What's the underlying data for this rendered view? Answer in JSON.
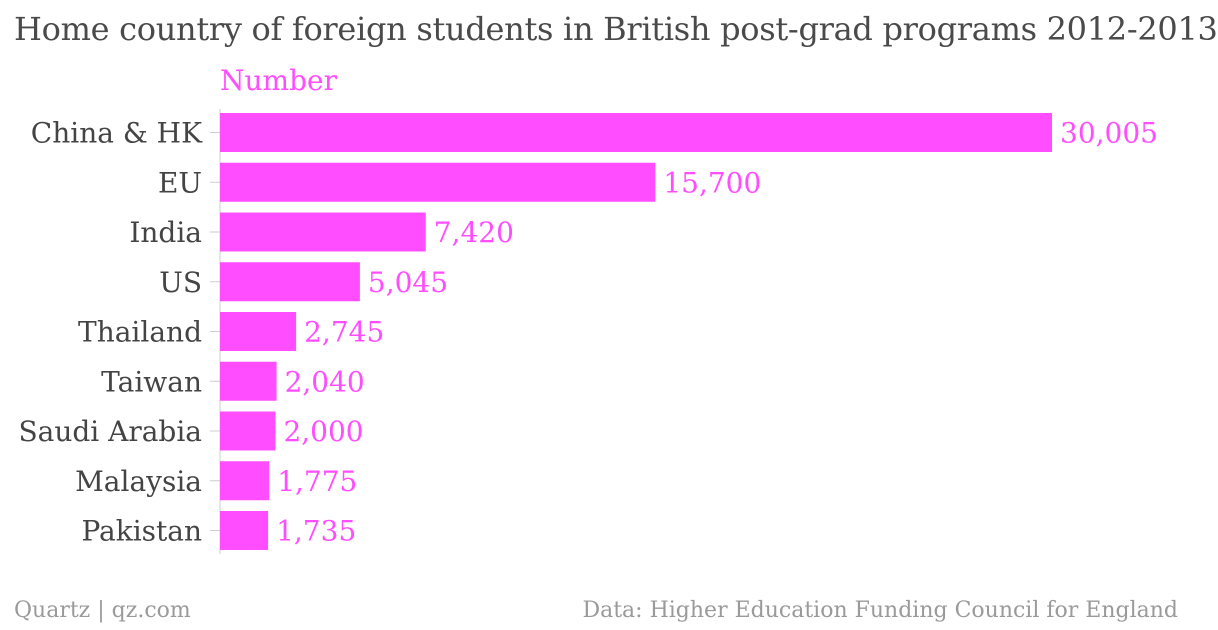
{
  "title": "Home country of foreign students in British post-grad programs 2012-2013",
  "footer": {
    "source_left": "Quartz | qz.com",
    "source_right": "Data: Higher Education Funding Council for England"
  },
  "colors": {
    "bar": "#ff4dff",
    "value_label": "#ff4dff",
    "category_label": "#444444",
    "title": "#4a4a4a",
    "footer": "#9a9a9a",
    "axis": "#cccccc"
  },
  "chart_data": {
    "type": "bar",
    "orientation": "horizontal",
    "title": "Home country of foreign students in British post-grad programs 2012-2013",
    "xlabel": "",
    "ylabel": "",
    "grid": false,
    "legend": "none",
    "xlim": [
      0,
      30005
    ],
    "categories": [
      "China & HK",
      "EU",
      "India",
      "US",
      "Thailand",
      "Taiwan",
      "Saudi Arabia",
      "Malaysia",
      "Pakistan"
    ],
    "series": [
      {
        "name": "Number",
        "values": [
          30005,
          15700,
          7420,
          5045,
          2745,
          2040,
          2000,
          1775,
          1735
        ],
        "labels": [
          "30,005",
          "15,700",
          "7,420",
          "5,045",
          "2,745",
          "2,040",
          "2,000",
          "1,775",
          "1,735"
        ]
      }
    ]
  }
}
